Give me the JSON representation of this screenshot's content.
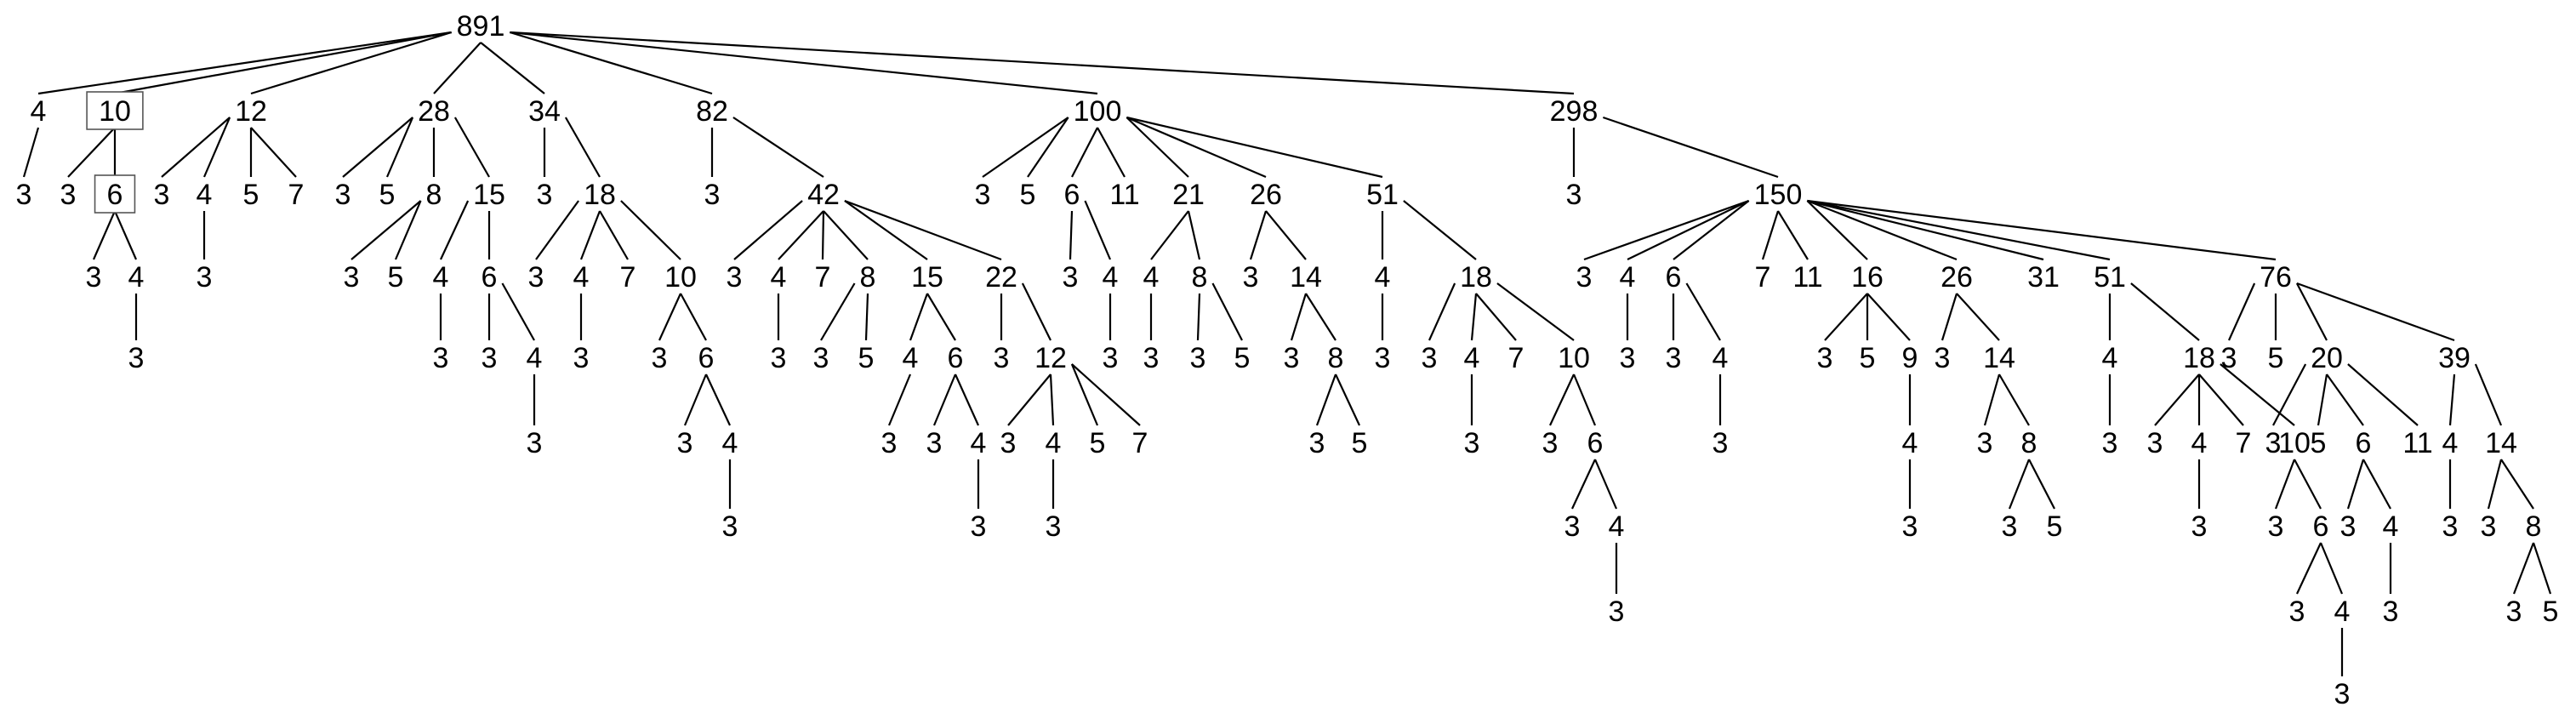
{
  "tree": {
    "nodes": [
      {
        "id": "r",
        "label": "891"
      },
      {
        "id": "a1",
        "label": "4"
      },
      {
        "id": "a1a",
        "label": "3"
      },
      {
        "id": "a2",
        "label": "10",
        "boxed": true
      },
      {
        "id": "a2a",
        "label": "3"
      },
      {
        "id": "a2b",
        "label": "6",
        "boxed": true
      },
      {
        "id": "a2b1",
        "label": "3"
      },
      {
        "id": "a2b2",
        "label": "4"
      },
      {
        "id": "a2b2a",
        "label": "3"
      },
      {
        "id": "a3",
        "label": "12"
      },
      {
        "id": "a3a",
        "label": "3"
      },
      {
        "id": "a3b",
        "label": "4"
      },
      {
        "id": "a3b1",
        "label": "3"
      },
      {
        "id": "a3c",
        "label": "5"
      },
      {
        "id": "a3d",
        "label": "7"
      },
      {
        "id": "a4",
        "label": "28"
      },
      {
        "id": "a4a",
        "label": "3"
      },
      {
        "id": "a4b",
        "label": "5"
      },
      {
        "id": "a4c",
        "label": "8"
      },
      {
        "id": "a4c1",
        "label": "3"
      },
      {
        "id": "a4c2",
        "label": "5"
      },
      {
        "id": "a4d",
        "label": "15"
      },
      {
        "id": "a4d1",
        "label": "4"
      },
      {
        "id": "a4d1a",
        "label": "3"
      },
      {
        "id": "a4d2",
        "label": "6"
      },
      {
        "id": "a4d2a",
        "label": "3"
      },
      {
        "id": "a4d2b",
        "label": "4"
      },
      {
        "id": "a4d2b1",
        "label": "3"
      },
      {
        "id": "a5",
        "label": "34"
      },
      {
        "id": "a5a",
        "label": "3"
      },
      {
        "id": "a5b",
        "label": "18"
      },
      {
        "id": "a5b1",
        "label": "3"
      },
      {
        "id": "a5b2",
        "label": "4"
      },
      {
        "id": "a5b2a",
        "label": "3"
      },
      {
        "id": "a5b3",
        "label": "7"
      },
      {
        "id": "a5b4",
        "label": "10"
      },
      {
        "id": "a5b4a",
        "label": "3"
      },
      {
        "id": "a5b4b",
        "label": "6"
      },
      {
        "id": "a5b4b1",
        "label": "3"
      },
      {
        "id": "a5b4b2",
        "label": "4"
      },
      {
        "id": "a5b4b2a",
        "label": "3"
      },
      {
        "id": "a6",
        "label": "82"
      },
      {
        "id": "a6a",
        "label": "3"
      },
      {
        "id": "a6b",
        "label": "42"
      },
      {
        "id": "a6b1",
        "label": "3"
      },
      {
        "id": "a6b2",
        "label": "4"
      },
      {
        "id": "a6b2a",
        "label": "3"
      },
      {
        "id": "a6b3",
        "label": "7"
      },
      {
        "id": "a6b4",
        "label": "8"
      },
      {
        "id": "a6b4a",
        "label": "3"
      },
      {
        "id": "a6b4b",
        "label": "5"
      },
      {
        "id": "a6b5",
        "label": "15"
      },
      {
        "id": "a6b5a",
        "label": "4"
      },
      {
        "id": "a6b5a1",
        "label": "3"
      },
      {
        "id": "a6b5b",
        "label": "6"
      },
      {
        "id": "a6b5b1",
        "label": "3"
      },
      {
        "id": "a6b5b2",
        "label": "4"
      },
      {
        "id": "a6b5b2a",
        "label": "3"
      },
      {
        "id": "a6b6",
        "label": "22"
      },
      {
        "id": "a6b6a",
        "label": "3"
      },
      {
        "id": "a6b6b",
        "label": "12"
      },
      {
        "id": "a6b6b1",
        "label": "3"
      },
      {
        "id": "a6b6b2",
        "label": "4"
      },
      {
        "id": "a6b6b2a",
        "label": "3"
      },
      {
        "id": "a6b6b3",
        "label": "5"
      },
      {
        "id": "a6b6b4",
        "label": "7"
      },
      {
        "id": "a7",
        "label": "100"
      },
      {
        "id": "a7a",
        "label": "3"
      },
      {
        "id": "a7b",
        "label": "5"
      },
      {
        "id": "a7c",
        "label": "6"
      },
      {
        "id": "a7c1",
        "label": "3"
      },
      {
        "id": "a7c2",
        "label": "4"
      },
      {
        "id": "a7c2a",
        "label": "3"
      },
      {
        "id": "a7d",
        "label": "11"
      },
      {
        "id": "a7e",
        "label": "21"
      },
      {
        "id": "a7e1",
        "label": "4"
      },
      {
        "id": "a7e1a",
        "label": "3"
      },
      {
        "id": "a7e2",
        "label": "8"
      },
      {
        "id": "a7e2a",
        "label": "3"
      },
      {
        "id": "a7e2b",
        "label": "5"
      },
      {
        "id": "a7f",
        "label": "26"
      },
      {
        "id": "a7f1",
        "label": "3"
      },
      {
        "id": "a7f2",
        "label": "14"
      },
      {
        "id": "a7f2a",
        "label": "3"
      },
      {
        "id": "a7f2b",
        "label": "8"
      },
      {
        "id": "a7f2b1",
        "label": "3"
      },
      {
        "id": "a7f2b2",
        "label": "5"
      },
      {
        "id": "a7g",
        "label": "51"
      },
      {
        "id": "a7g1",
        "label": "4"
      },
      {
        "id": "a7g1a",
        "label": "3"
      },
      {
        "id": "a7g2",
        "label": "18"
      },
      {
        "id": "a7g2a",
        "label": "3"
      },
      {
        "id": "a7g2b",
        "label": "4"
      },
      {
        "id": "a7g2b1",
        "label": "3"
      },
      {
        "id": "a7g2c",
        "label": "7"
      },
      {
        "id": "a7g2d",
        "label": "10"
      },
      {
        "id": "a7g2d1",
        "label": "3"
      },
      {
        "id": "a7g2d2",
        "label": "6"
      },
      {
        "id": "a7g2d2a",
        "label": "3"
      },
      {
        "id": "a7g2d2b",
        "label": "4"
      },
      {
        "id": "a7g2d2b1",
        "label": "3"
      },
      {
        "id": "a8",
        "label": "298"
      },
      {
        "id": "a8a",
        "label": "3"
      },
      {
        "id": "b",
        "label": "150"
      },
      {
        "id": "b1",
        "label": "3"
      },
      {
        "id": "b2",
        "label": "4"
      },
      {
        "id": "b2a",
        "label": "3"
      },
      {
        "id": "b3",
        "label": "6"
      },
      {
        "id": "b3a",
        "label": "3"
      },
      {
        "id": "b3b",
        "label": "4"
      },
      {
        "id": "b3b1",
        "label": "3"
      },
      {
        "id": "b4",
        "label": "7"
      },
      {
        "id": "b5",
        "label": "11"
      },
      {
        "id": "b6",
        "label": "16"
      },
      {
        "id": "b6a",
        "label": "3"
      },
      {
        "id": "b6b",
        "label": "5"
      },
      {
        "id": "b6c",
        "label": "9"
      },
      {
        "id": "b6c1",
        "label": "4"
      },
      {
        "id": "b6c1a",
        "label": "3"
      },
      {
        "id": "b7",
        "label": "26"
      },
      {
        "id": "b7a",
        "label": "3"
      },
      {
        "id": "b7b",
        "label": "14"
      },
      {
        "id": "b7b1",
        "label": "3"
      },
      {
        "id": "b7b2",
        "label": "8"
      },
      {
        "id": "b7b2a",
        "label": "3"
      },
      {
        "id": "b7b2b",
        "label": "5"
      },
      {
        "id": "b8",
        "label": "31"
      },
      {
        "id": "b9",
        "label": "51"
      },
      {
        "id": "b9a",
        "label": "4"
      },
      {
        "id": "b9a1",
        "label": "3"
      },
      {
        "id": "b9b",
        "label": "18"
      },
      {
        "id": "b9b1",
        "label": "3"
      },
      {
        "id": "b9b2",
        "label": "4"
      },
      {
        "id": "b9b2a",
        "label": "3"
      },
      {
        "id": "b9b3",
        "label": "7"
      },
      {
        "id": "b9b4",
        "label": "10"
      },
      {
        "id": "b9b4a",
        "label": "3"
      },
      {
        "id": "b9b4b",
        "label": "6"
      },
      {
        "id": "b9b4b1",
        "label": "3"
      },
      {
        "id": "b9b4b2",
        "label": "4"
      },
      {
        "id": "b9b4b2a",
        "label": "3"
      },
      {
        "id": "b10",
        "label": "76"
      },
      {
        "id": "b10a",
        "label": "3"
      },
      {
        "id": "b10b",
        "label": "5"
      },
      {
        "id": "b10c",
        "label": "20"
      },
      {
        "id": "b10c1",
        "label": "3"
      },
      {
        "id": "b10c2",
        "label": "5"
      },
      {
        "id": "b10c3",
        "label": "6"
      },
      {
        "id": "b10c3a",
        "label": "3"
      },
      {
        "id": "b10c3b",
        "label": "4"
      },
      {
        "id": "b10c3b1",
        "label": "3"
      },
      {
        "id": "b10c4",
        "label": "11"
      },
      {
        "id": "b10d",
        "label": "39"
      },
      {
        "id": "b10d1",
        "label": "4"
      },
      {
        "id": "b10d1a",
        "label": "3"
      },
      {
        "id": "b10d2",
        "label": "14"
      },
      {
        "id": "b10d2a",
        "label": "3"
      },
      {
        "id": "b10d2b",
        "label": "8"
      },
      {
        "id": "b10d2b1",
        "label": "3"
      },
      {
        "id": "b10d2b2",
        "label": "5"
      }
    ],
    "edges": [
      [
        "r",
        "a1"
      ],
      [
        "r",
        "a2"
      ],
      [
        "r",
        "a3"
      ],
      [
        "r",
        "a4"
      ],
      [
        "r",
        "a5"
      ],
      [
        "r",
        "a6"
      ],
      [
        "r",
        "a7"
      ],
      [
        "r",
        "a8"
      ],
      [
        "a1",
        "a1a"
      ],
      [
        "a2",
        "a2a"
      ],
      [
        "a2",
        "a2b"
      ],
      [
        "a2b",
        "a2b1"
      ],
      [
        "a2b",
        "a2b2"
      ],
      [
        "a2b2",
        "a2b2a"
      ],
      [
        "a3",
        "a3a"
      ],
      [
        "a3",
        "a3b"
      ],
      [
        "a3b",
        "a3b1"
      ],
      [
        "a3",
        "a3c"
      ],
      [
        "a3",
        "a3d"
      ],
      [
        "a4",
        "a4a"
      ],
      [
        "a4",
        "a4b"
      ],
      [
        "a4",
        "a4c"
      ],
      [
        "a4c",
        "a4c1"
      ],
      [
        "a4c",
        "a4c2"
      ],
      [
        "a4",
        "a4d"
      ],
      [
        "a4d",
        "a4d1"
      ],
      [
        "a4d1",
        "a4d1a"
      ],
      [
        "a4d",
        "a4d2"
      ],
      [
        "a4d2",
        "a4d2a"
      ],
      [
        "a4d2",
        "a4d2b"
      ],
      [
        "a4d2b",
        "a4d2b1"
      ],
      [
        "a5",
        "a5a"
      ],
      [
        "a5",
        "a5b"
      ],
      [
        "a5b",
        "a5b1"
      ],
      [
        "a5b",
        "a5b2"
      ],
      [
        "a5b2",
        "a5b2a"
      ],
      [
        "a5b",
        "a5b3"
      ],
      [
        "a5b",
        "a5b4"
      ],
      [
        "a5b4",
        "a5b4a"
      ],
      [
        "a5b4",
        "a5b4b"
      ],
      [
        "a5b4b",
        "a5b4b1"
      ],
      [
        "a5b4b",
        "a5b4b2"
      ],
      [
        "a5b4b2",
        "a5b4b2a"
      ],
      [
        "a6",
        "a6a"
      ],
      [
        "a6",
        "a6b"
      ],
      [
        "a6b",
        "a6b1"
      ],
      [
        "a6b",
        "a6b2"
      ],
      [
        "a6b2",
        "a6b2a"
      ],
      [
        "a6b",
        "a6b3"
      ],
      [
        "a6b",
        "a6b4"
      ],
      [
        "a6b4",
        "a6b4a"
      ],
      [
        "a6b4",
        "a6b4b"
      ],
      [
        "a6b",
        "a6b5"
      ],
      [
        "a6b5",
        "a6b5a"
      ],
      [
        "a6b5a",
        "a6b5a1"
      ],
      [
        "a6b5",
        "a6b5b"
      ],
      [
        "a6b5b",
        "a6b5b1"
      ],
      [
        "a6b5b",
        "a6b5b2"
      ],
      [
        "a6b5b2",
        "a6b5b2a"
      ],
      [
        "a6b",
        "a6b6"
      ],
      [
        "a6b6",
        "a6b6a"
      ],
      [
        "a6b6",
        "a6b6b"
      ],
      [
        "a6b6b",
        "a6b6b1"
      ],
      [
        "a6b6b",
        "a6b6b2"
      ],
      [
        "a6b6b2",
        "a6b6b2a"
      ],
      [
        "a6b6b",
        "a6b6b3"
      ],
      [
        "a6b6b",
        "a6b6b4"
      ],
      [
        "a7",
        "a7a"
      ],
      [
        "a7",
        "a7b"
      ],
      [
        "a7",
        "a7c"
      ],
      [
        "a7c",
        "a7c1"
      ],
      [
        "a7c",
        "a7c2"
      ],
      [
        "a7c2",
        "a7c2a"
      ],
      [
        "a7",
        "a7d"
      ],
      [
        "a7",
        "a7e"
      ],
      [
        "a7e",
        "a7e1"
      ],
      [
        "a7e1",
        "a7e1a"
      ],
      [
        "a7e",
        "a7e2"
      ],
      [
        "a7e2",
        "a7e2a"
      ],
      [
        "a7e2",
        "a7e2b"
      ],
      [
        "a7",
        "a7f"
      ],
      [
        "a7f",
        "a7f1"
      ],
      [
        "a7f",
        "a7f2"
      ],
      [
        "a7f2",
        "a7f2a"
      ],
      [
        "a7f2",
        "a7f2b"
      ],
      [
        "a7f2b",
        "a7f2b1"
      ],
      [
        "a7f2b",
        "a7f2b2"
      ],
      [
        "a7",
        "a7g"
      ],
      [
        "a7g",
        "a7g1"
      ],
      [
        "a7g1",
        "a7g1a"
      ],
      [
        "a7g",
        "a7g2"
      ],
      [
        "a7g2",
        "a7g2a"
      ],
      [
        "a7g2",
        "a7g2b"
      ],
      [
        "a7g2b",
        "a7g2b1"
      ],
      [
        "a7g2",
        "a7g2c"
      ],
      [
        "a7g2",
        "a7g2d"
      ],
      [
        "a7g2d",
        "a7g2d1"
      ],
      [
        "a7g2d",
        "a7g2d2"
      ],
      [
        "a7g2d2",
        "a7g2d2a"
      ],
      [
        "a7g2d2",
        "a7g2d2b"
      ],
      [
        "a7g2d2b",
        "a7g2d2b1"
      ],
      [
        "a8",
        "a8a"
      ],
      [
        "a8",
        "b"
      ],
      [
        "b",
        "b1"
      ],
      [
        "b",
        "b2"
      ],
      [
        "b2",
        "b2a"
      ],
      [
        "b",
        "b3"
      ],
      [
        "b3",
        "b3a"
      ],
      [
        "b3",
        "b3b"
      ],
      [
        "b3b",
        "b3b1"
      ],
      [
        "b",
        "b4"
      ],
      [
        "b",
        "b5"
      ],
      [
        "b",
        "b6"
      ],
      [
        "b6",
        "b6a"
      ],
      [
        "b6",
        "b6b"
      ],
      [
        "b6",
        "b6c"
      ],
      [
        "b6c",
        "b6c1"
      ],
      [
        "b6c1",
        "b6c1a"
      ],
      [
        "b",
        "b7"
      ],
      [
        "b7",
        "b7a"
      ],
      [
        "b7",
        "b7b"
      ],
      [
        "b7b",
        "b7b1"
      ],
      [
        "b7b",
        "b7b2"
      ],
      [
        "b7b2",
        "b7b2a"
      ],
      [
        "b7b2",
        "b7b2b"
      ],
      [
        "b",
        "b8"
      ],
      [
        "b",
        "b9"
      ],
      [
        "b9",
        "b9a"
      ],
      [
        "b9a",
        "b9a1"
      ],
      [
        "b9",
        "b9b"
      ],
      [
        "b9b",
        "b9b1"
      ],
      [
        "b9b",
        "b9b2"
      ],
      [
        "b9b2",
        "b9b2a"
      ],
      [
        "b9b",
        "b9b3"
      ],
      [
        "b9b",
        "b9b4"
      ],
      [
        "b9b4",
        "b9b4a"
      ],
      [
        "b9b4",
        "b9b4b"
      ],
      [
        "b9b4b",
        "b9b4b1"
      ],
      [
        "b9b4b",
        "b9b4b2"
      ],
      [
        "b9b4b2",
        "b9b4b2a"
      ],
      [
        "b",
        "b10"
      ],
      [
        "b10",
        "b10a"
      ],
      [
        "b10",
        "b10b"
      ],
      [
        "b10",
        "b10c"
      ],
      [
        "b10c",
        "b10c1"
      ],
      [
        "b10c",
        "b10c2"
      ],
      [
        "b10c",
        "b10c3"
      ],
      [
        "b10c3",
        "b10c3a"
      ],
      [
        "b10c3",
        "b10c3b"
      ],
      [
        "b10c3b",
        "b10c3b1"
      ],
      [
        "b10c",
        "b10c4"
      ],
      [
        "b10",
        "b10d"
      ],
      [
        "b10d",
        "b10d1"
      ],
      [
        "b10d1",
        "b10d1a"
      ],
      [
        "b10d",
        "b10d2"
      ],
      [
        "b10d2",
        "b10d2a"
      ],
      [
        "b10d2",
        "b10d2b"
      ],
      [
        "b10d2b",
        "b10d2b1"
      ],
      [
        "b10d2b",
        "b10d2b2"
      ]
    ]
  }
}
